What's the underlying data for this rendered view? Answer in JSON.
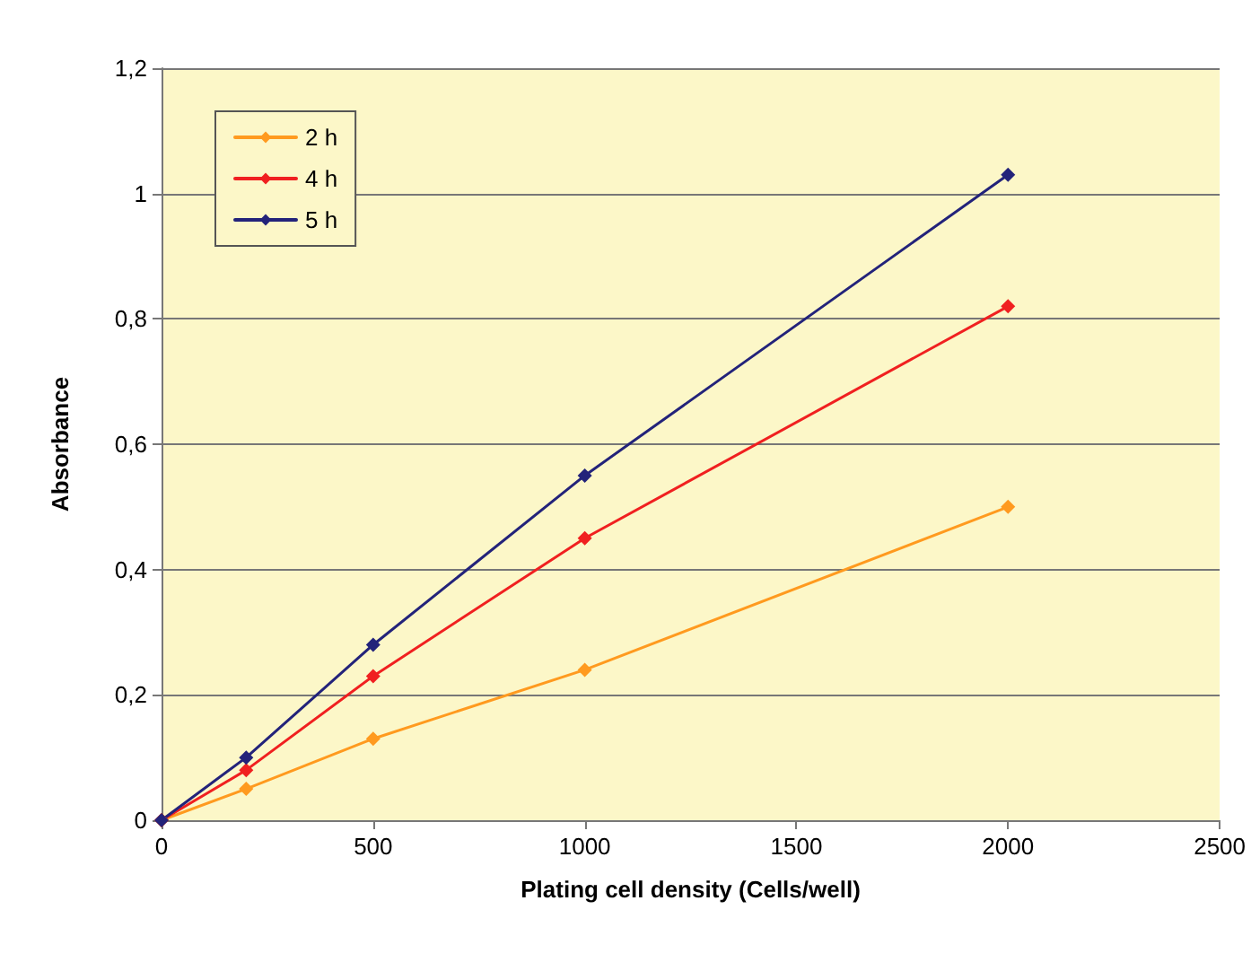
{
  "chart_data": {
    "type": "line",
    "xlabel": "Plating cell density (Cells/well)",
    "ylabel": "Absorbance",
    "x": [
      0,
      200,
      500,
      1000,
      2000
    ],
    "series": [
      {
        "name": "2 h",
        "color": "#ff9a1f",
        "values": [
          0,
          0.05,
          0.13,
          0.24,
          0.5
        ]
      },
      {
        "name": "4 h",
        "color": "#f02020",
        "values": [
          0,
          0.08,
          0.23,
          0.45,
          0.82
        ]
      },
      {
        "name": "5 h",
        "color": "#23237a",
        "values": [
          0,
          0.1,
          0.28,
          0.55,
          1.03
        ]
      }
    ],
    "xlim": [
      0,
      2500
    ],
    "xticks": [
      0,
      500,
      1000,
      1500,
      2000,
      2500
    ],
    "ylim": [
      0,
      1.2
    ],
    "yticks": [
      0,
      {
        "value": 0.2,
        "label": "0,2"
      },
      {
        "value": 0.4,
        "label": "0,4"
      },
      {
        "value": 0.6,
        "label": "0,6"
      },
      {
        "value": 0.8,
        "label": "0,8"
      },
      1,
      {
        "value": 1.2,
        "label": "1,2"
      }
    ],
    "grid": "y",
    "legend": "top left",
    "marker": "diamond",
    "line_style": "solid"
  }
}
